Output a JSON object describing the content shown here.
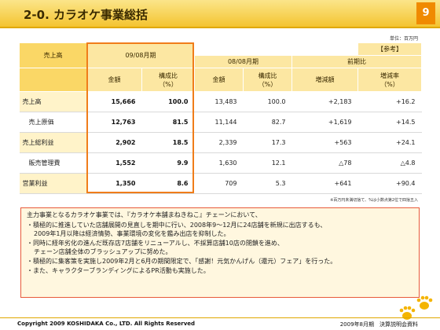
{
  "title": "2-0. カラオケ事業総括",
  "page_number": "9",
  "unit_note": "単位：百万円",
  "table": {
    "row_header": "売上高",
    "current_period": "09/08月期",
    "reference_label": "【参考】",
    "prev_period": "08/08月期",
    "yoy_label": "前期比",
    "col_amount": "金額",
    "col_ratio_l1": "構成比",
    "col_ratio_l2": "（%）",
    "col_change": "増減額",
    "col_rate_l1": "増減率",
    "col_rate_l2": "（%）",
    "rows": [
      {
        "label": "売上高",
        "amount": "15,666",
        "ratio": "100.0",
        "prev_amount": "13,483",
        "prev_ratio": "100.0",
        "change": "+2,183",
        "rate": "+16.2"
      },
      {
        "label": "売上原価",
        "amount": "12,763",
        "ratio": "81.5",
        "prev_amount": "11,144",
        "prev_ratio": "82.7",
        "change": "+1,619",
        "rate": "+14.5"
      },
      {
        "label": "売上総利益",
        "amount": "2,902",
        "ratio": "18.5",
        "prev_amount": "2,339",
        "prev_ratio": "17.3",
        "change": "+563",
        "rate": "+24.1"
      },
      {
        "label": "販売管理費",
        "amount": "1,552",
        "ratio": "9.9",
        "prev_amount": "1,630",
        "prev_ratio": "12.1",
        "change": "△78",
        "rate": "△4.8"
      },
      {
        "label": "営業利益",
        "amount": "1,350",
        "ratio": "8.6",
        "prev_amount": "709",
        "prev_ratio": "5.3",
        "change": "+641",
        "rate": "+90.4"
      }
    ]
  },
  "foot_note": "※百万円未満切捨て、%は小数点第2位で四捨五入",
  "summary": {
    "intro": "主力事業となるカラオケ事業では、『カラオケ本舗まねきねこ』チェーンにおいて、",
    "bullet1_l1": "・積極的に推進していた店舗展開の見直しを期中に行い、2008年9～12月に24店舗を新規に出店するも、",
    "bullet1_l2": "2009年1月以降は経済情勢、事業環境の変化を鑑み出店を抑制した。",
    "bullet2_l1": "・同時に経年劣化の進んだ既存店7店舗をリニューアルし、不採算店舗10店の閉鎖を進め、",
    "bullet2_l2": "チェーン店舗全体のブラッシュアップに努めた。",
    "bullet3": "・積極的に集客策を実施し2009年2月と6月の期間限定で、「感謝！元気かんげん（還元）フェア」を行った。",
    "bullet4": "・また、キャラクターブランディングによるPR活動も実施した。"
  },
  "footer": {
    "copyright": "Copyright 2009 KOSHIDAKA Co., LTD. All Rights Reserved",
    "right": "2009年8月期　決算説明会資料"
  },
  "colors": {
    "accent": "#f4c430",
    "box": "#f07d1a",
    "header": "#fce7a2",
    "paw": "#f4b400"
  }
}
